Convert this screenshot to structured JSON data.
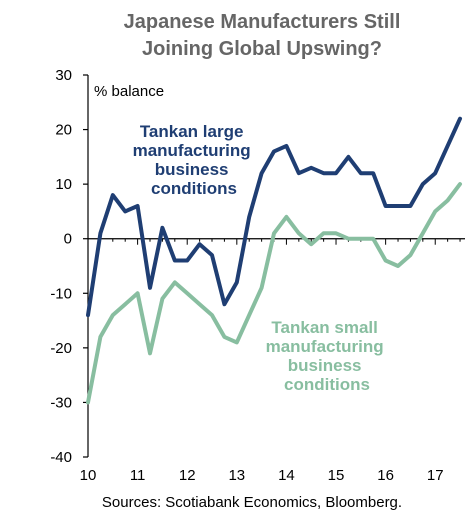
{
  "chart_data": {
    "type": "line",
    "title_lines": [
      "Japanese Manufacturers Still",
      "Joining Global Upswing?"
    ],
    "ylabel": "% balance",
    "ylim": [
      -40,
      30
    ],
    "yticks": [
      30,
      20,
      10,
      0,
      -10,
      -20,
      -30,
      -40
    ],
    "xlim": [
      10,
      17.6
    ],
    "xticks": [
      "10",
      "11",
      "12",
      "13",
      "14",
      "15",
      "16",
      "17"
    ],
    "grid": false,
    "series": [
      {
        "name_lines": [
          "Tankan large",
          "manufacturing",
          "business",
          "conditions"
        ],
        "color": "#1f3e73",
        "x": [
          10.0,
          10.25,
          10.5,
          10.75,
          11.0,
          11.25,
          11.5,
          11.75,
          12.0,
          12.25,
          12.5,
          12.75,
          13.0,
          13.25,
          13.5,
          13.75,
          14.0,
          14.25,
          14.5,
          14.75,
          15.0,
          15.25,
          15.5,
          15.75,
          16.0,
          16.25,
          16.5,
          16.75,
          17.0,
          17.25,
          17.5
        ],
        "values": [
          -14,
          1,
          8,
          5,
          6,
          -9,
          2,
          -4,
          -4,
          -1,
          -3,
          -12,
          -8,
          4,
          12,
          16,
          17,
          12,
          13,
          12,
          12,
          15,
          12,
          12,
          6,
          6,
          6,
          10,
          12,
          17,
          22
        ]
      },
      {
        "name_lines": [
          "Tankan small",
          "manufacturing",
          "business",
          "conditions"
        ],
        "color": "#88bea0",
        "x": [
          10.0,
          10.25,
          10.5,
          10.75,
          11.0,
          11.25,
          11.5,
          11.75,
          12.0,
          12.25,
          12.5,
          12.75,
          13.0,
          13.25,
          13.5,
          13.75,
          14.0,
          14.25,
          14.5,
          14.75,
          15.0,
          15.25,
          15.5,
          15.75,
          16.0,
          16.25,
          16.5,
          16.75,
          17.0,
          17.25,
          17.5
        ],
        "values": [
          -30,
          -18,
          -14,
          -12,
          -10,
          -21,
          -11,
          -8,
          -10,
          -12,
          -14,
          -18,
          -19,
          -14,
          -9,
          1,
          4,
          1,
          -1,
          1,
          1,
          0,
          0,
          0,
          -4,
          -5,
          -3,
          1,
          5,
          7,
          10
        ]
      }
    ],
    "source": "Sources: Scotiabank Economics, Bloomberg."
  }
}
